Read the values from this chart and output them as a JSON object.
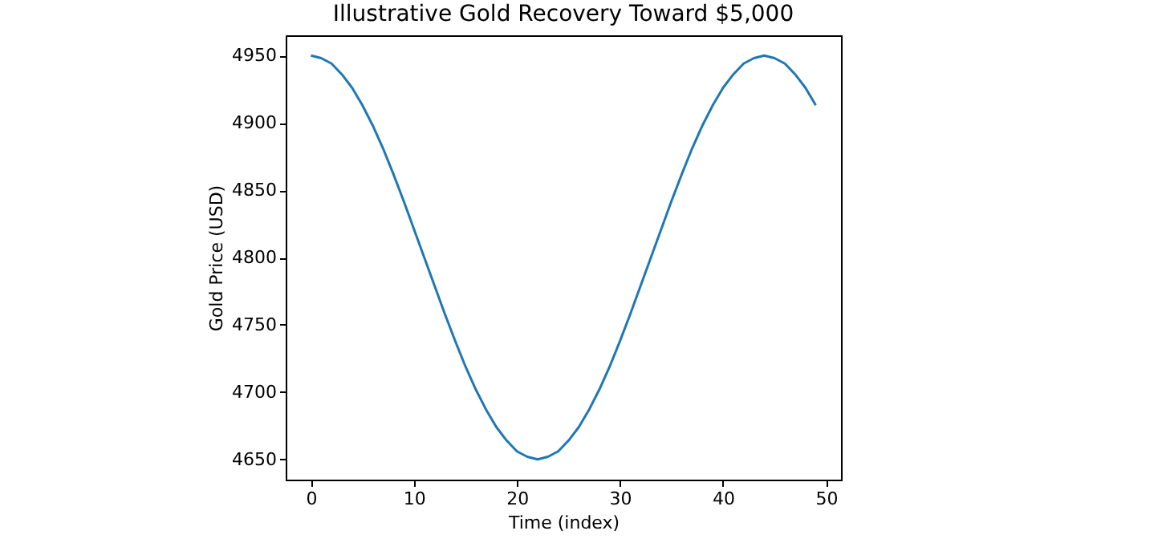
{
  "chart_data": {
    "type": "line",
    "title": "Illustrative Gold Recovery Toward $5,000",
    "xlabel": "Time (index)",
    "ylabel": "Gold Price (USD)",
    "x": [
      0,
      1,
      2,
      3,
      4,
      5,
      6,
      7,
      8,
      9,
      10,
      11,
      12,
      13,
      14,
      15,
      16,
      17,
      18,
      19,
      20,
      21,
      22,
      23,
      24,
      25,
      26,
      27,
      28,
      29,
      30,
      31,
      32,
      33,
      34,
      35,
      36,
      37,
      38,
      39,
      40,
      41,
      42,
      43,
      44,
      45,
      46,
      47,
      48,
      49
    ],
    "series": [
      {
        "color": "#1f77b4",
        "values": [
          4950,
          4948,
          4944,
          4936,
          4926,
          4913,
          4898,
          4881,
          4862,
          4842,
          4821,
          4800,
          4779,
          4758,
          4738,
          4719,
          4702,
          4687,
          4674,
          4664,
          4656,
          4652,
          4650,
          4652,
          4656,
          4664,
          4674,
          4687,
          4702,
          4719,
          4738,
          4758,
          4779,
          4800,
          4821,
          4842,
          4862,
          4881,
          4898,
          4913,
          4926,
          4936,
          4944,
          4948,
          4950,
          4948,
          4944,
          4936,
          4926,
          4913
        ]
      }
    ],
    "xlim": [
      -2.45,
      51.45
    ],
    "xticks": [
      0,
      10,
      20,
      30,
      40,
      50
    ],
    "ylim": [
      4635,
      4965
    ],
    "yticks": [
      4650,
      4700,
      4750,
      4800,
      4850,
      4900,
      4950
    ],
    "grid": false,
    "marker": "none",
    "line_style": "solid"
  }
}
